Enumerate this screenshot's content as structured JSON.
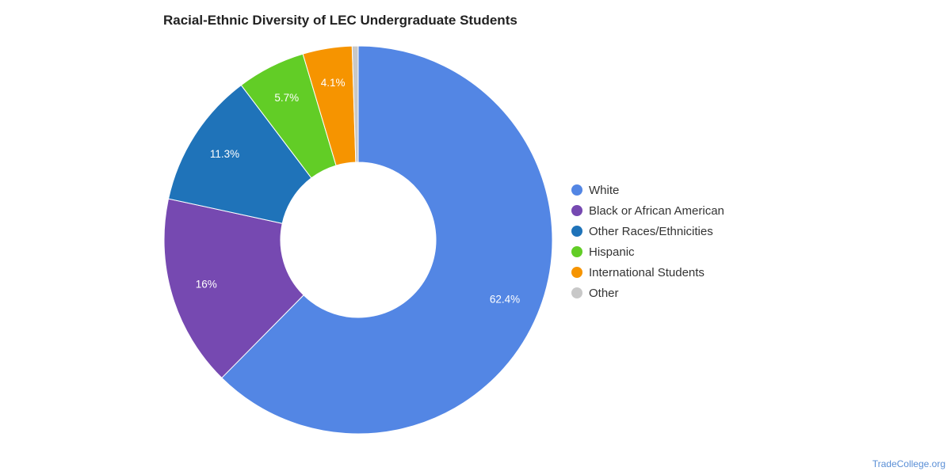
{
  "chart_data": {
    "type": "pie",
    "donut": true,
    "title": "Racial-Ethnic Diversity of LEC Undergraduate Students",
    "legend_position": "right",
    "slices": [
      {
        "label": "White",
        "value": 62.4,
        "display": "62.4%",
        "color": "#5386e4"
      },
      {
        "label": "Black or African American",
        "value": 16.0,
        "display": "16%",
        "color": "#7649b1"
      },
      {
        "label": "Other Races/Ethnicities",
        "value": 11.3,
        "display": "11.3%",
        "color": "#1f73b9"
      },
      {
        "label": "Hispanic",
        "value": 5.7,
        "display": "5.7%",
        "color": "#62cd26"
      },
      {
        "label": "International Students",
        "value": 4.1,
        "display": "4.1%",
        "color": "#f69400"
      },
      {
        "label": "Other",
        "value": 0.5,
        "display": "",
        "color": "#c8c8c8"
      }
    ]
  },
  "footer": {
    "credit": "TradeCollege.org"
  }
}
